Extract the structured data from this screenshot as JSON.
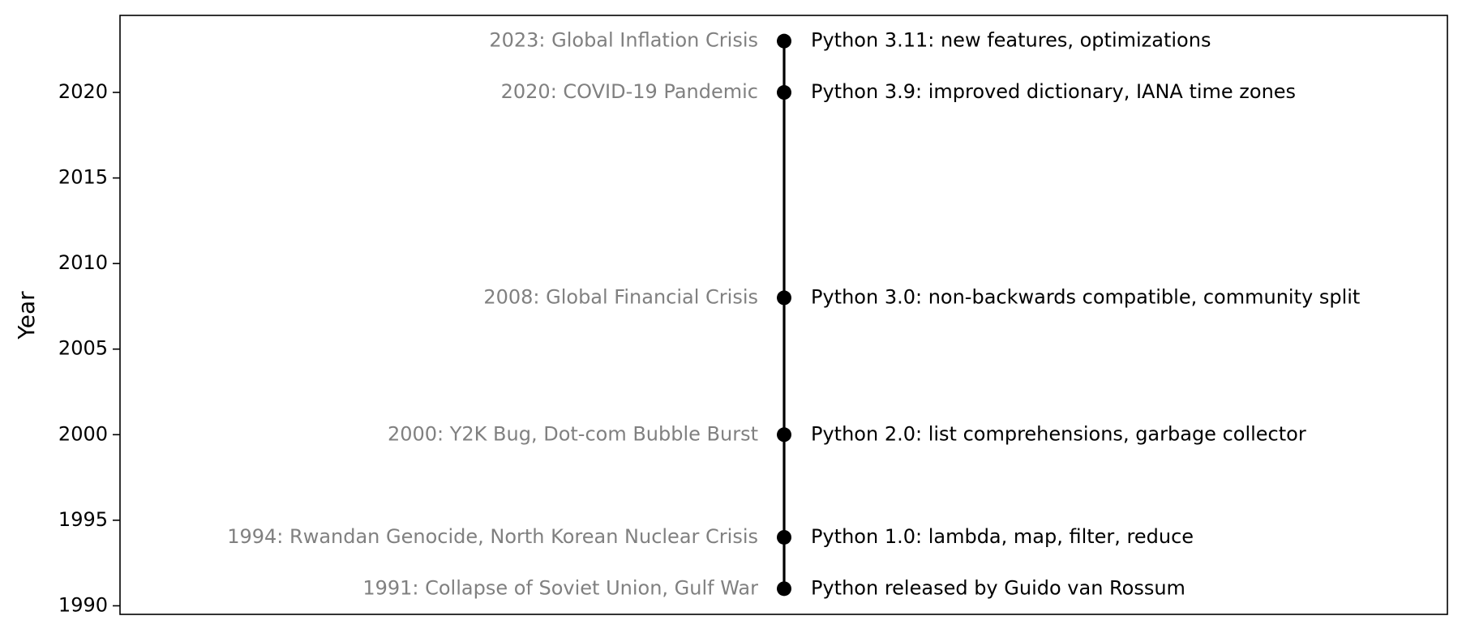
{
  "chart_data": {
    "type": "scatter",
    "title": "",
    "xlabel": "",
    "ylabel": "Year",
    "ylim": [
      1989.5,
      2024.5
    ],
    "yticks": [
      1990,
      1995,
      2000,
      2005,
      2010,
      2015,
      2020
    ],
    "ytick_labels": [
      "1990",
      "1995",
      "2000",
      "2005",
      "2010",
      "2015",
      "2020"
    ],
    "grid": false,
    "legend": "none",
    "line_color": "#000000",
    "marker_color": "#000000",
    "world_event_color": "#808080",
    "python_event_color": "#000000",
    "events": [
      {
        "year": 1991,
        "world": "1991: Collapse of Soviet Union, Gulf War",
        "python": "Python released by Guido van Rossum"
      },
      {
        "year": 1994,
        "world": "1994: Rwandan Genocide, North Korean Nuclear Crisis",
        "python": "Python 1.0: lambda, map, filter, reduce"
      },
      {
        "year": 2000,
        "world": "2000: Y2K Bug, Dot-com Bubble Burst",
        "python": "Python 2.0: list comprehensions, garbage collector"
      },
      {
        "year": 2008,
        "world": "2008: Global Financial Crisis",
        "python": "Python 3.0: non-backwards compatible, community split"
      },
      {
        "year": 2020,
        "world": "2020: COVID-19 Pandemic",
        "python": "Python 3.9: improved dictionary, IANA time zones"
      },
      {
        "year": 2023,
        "world": "2023: Global Inflation Crisis",
        "python": "Python 3.11: new features, optimizations"
      }
    ]
  }
}
